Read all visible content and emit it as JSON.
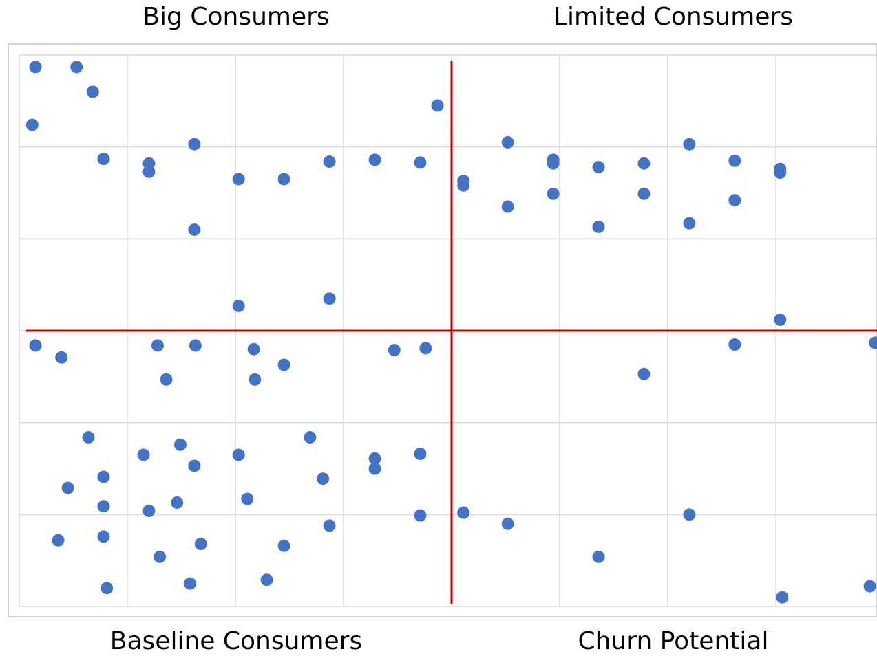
{
  "quadrant_labels": {
    "top_left": "Big Consumers",
    "top_right": "Limited Consumers",
    "bottom_left": "Baseline Consumers",
    "bottom_right": "Churn Potential"
  },
  "colors": {
    "point": "#4472C4",
    "divider": "#C00000",
    "grid": "#D9D9D9",
    "frame": "#D0D0D0"
  },
  "chart_data": {
    "type": "scatter",
    "title": "",
    "xlabel": "",
    "ylabel": "",
    "xlim": [
      0,
      8
    ],
    "ylim": [
      0,
      6
    ],
    "grid": true,
    "tick_labels_shown": false,
    "dividers": {
      "x": 4,
      "y": 3
    },
    "points": [
      [
        0.15,
        5.87
      ],
      [
        0.53,
        5.87
      ],
      [
        0.68,
        5.6
      ],
      [
        0.12,
        5.24
      ],
      [
        0.78,
        4.87
      ],
      [
        1.2,
        4.82
      ],
      [
        1.2,
        4.73
      ],
      [
        1.62,
        5.03
      ],
      [
        2.03,
        4.65
      ],
      [
        2.45,
        4.65
      ],
      [
        2.87,
        4.84
      ],
      [
        3.29,
        4.86
      ],
      [
        3.71,
        4.83
      ],
      [
        3.87,
        5.45
      ],
      [
        1.62,
        4.1
      ],
      [
        2.03,
        3.27
      ],
      [
        2.87,
        3.35
      ],
      [
        4.11,
        4.63
      ],
      [
        4.11,
        4.58
      ],
      [
        4.52,
        5.05
      ],
      [
        4.94,
        4.86
      ],
      [
        4.94,
        4.82
      ],
      [
        5.36,
        4.78
      ],
      [
        5.78,
        4.82
      ],
      [
        6.2,
        5.03
      ],
      [
        6.62,
        4.85
      ],
      [
        7.04,
        4.76
      ],
      [
        7.04,
        4.72
      ],
      [
        4.52,
        4.35
      ],
      [
        4.94,
        4.49
      ],
      [
        5.78,
        4.49
      ],
      [
        6.62,
        4.42
      ],
      [
        5.36,
        4.13
      ],
      [
        6.2,
        4.17
      ],
      [
        7.04,
        3.12
      ],
      [
        0.15,
        2.84
      ],
      [
        0.39,
        2.71
      ],
      [
        1.28,
        2.84
      ],
      [
        1.63,
        2.84
      ],
      [
        2.17,
        2.8
      ],
      [
        2.45,
        2.63
      ],
      [
        3.47,
        2.79
      ],
      [
        3.76,
        2.81
      ],
      [
        1.36,
        2.47
      ],
      [
        2.18,
        2.47
      ],
      [
        6.62,
        2.85
      ],
      [
        7.92,
        2.87
      ],
      [
        5.78,
        2.53
      ],
      [
        0.64,
        1.84
      ],
      [
        1.15,
        1.65
      ],
      [
        1.49,
        1.76
      ],
      [
        1.62,
        1.53
      ],
      [
        2.03,
        1.65
      ],
      [
        2.69,
        1.84
      ],
      [
        3.29,
        1.61
      ],
      [
        3.29,
        1.5
      ],
      [
        3.71,
        1.66
      ],
      [
        0.78,
        1.41
      ],
      [
        0.45,
        1.29
      ],
      [
        0.78,
        1.09
      ],
      [
        1.2,
        1.04
      ],
      [
        1.46,
        1.13
      ],
      [
        2.11,
        1.17
      ],
      [
        2.81,
        1.39
      ],
      [
        0.36,
        0.72
      ],
      [
        0.78,
        0.76
      ],
      [
        1.3,
        0.54
      ],
      [
        1.68,
        0.68
      ],
      [
        2.45,
        0.66
      ],
      [
        2.87,
        0.88
      ],
      [
        3.71,
        0.99
      ],
      [
        0.81,
        0.2
      ],
      [
        1.58,
        0.25
      ],
      [
        2.29,
        0.29
      ],
      [
        4.11,
        1.02
      ],
      [
        4.52,
        0.9
      ],
      [
        5.36,
        0.54
      ],
      [
        6.2,
        1.0
      ],
      [
        7.87,
        0.22
      ],
      [
        7.06,
        0.1
      ]
    ]
  }
}
